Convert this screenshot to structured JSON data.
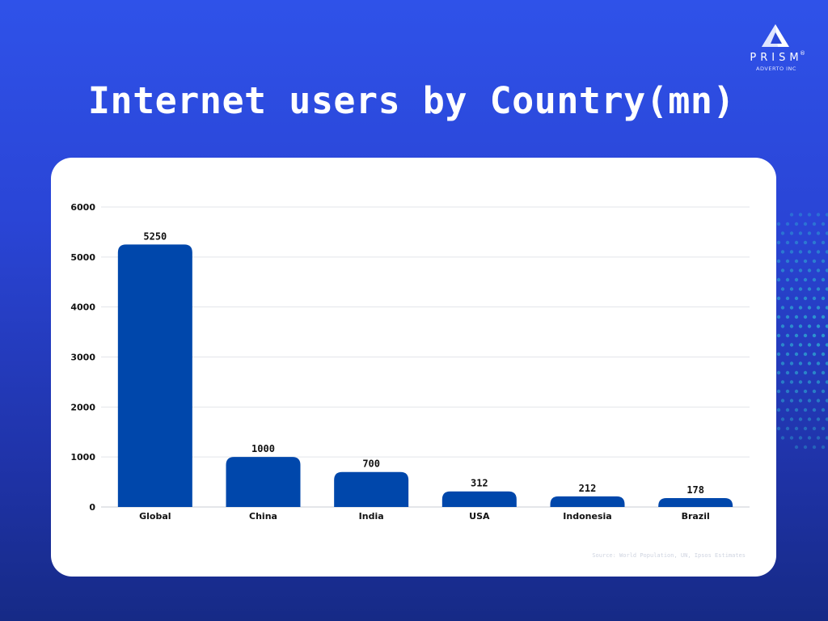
{
  "logo": {
    "name": "PRISM",
    "subtitle": "ADVERTO INC",
    "registered": "®",
    "icon": "prism-triangle-icon"
  },
  "colors": {
    "bar": "#0047ab",
    "grid": "#e3e5ea",
    "axis": "#c9ccd3"
  },
  "source": "Source: World Population, UN, Ipsos Estimates",
  "chart_data": {
    "type": "bar",
    "title": "Internet users by Country(mn)",
    "xlabel": "",
    "ylabel": "",
    "categories": [
      "Global",
      "China",
      "India",
      "USA",
      "Indonesia",
      "Brazil"
    ],
    "values": [
      5250,
      1000,
      700,
      312,
      212,
      178
    ],
    "data_labels": [
      "5250",
      "1000",
      "700",
      "312",
      "212",
      "178"
    ],
    "ylim": [
      0,
      6000
    ],
    "yticks": [
      0,
      1000,
      2000,
      3000,
      4000,
      5000,
      6000
    ],
    "grid": true,
    "legend": "none"
  }
}
